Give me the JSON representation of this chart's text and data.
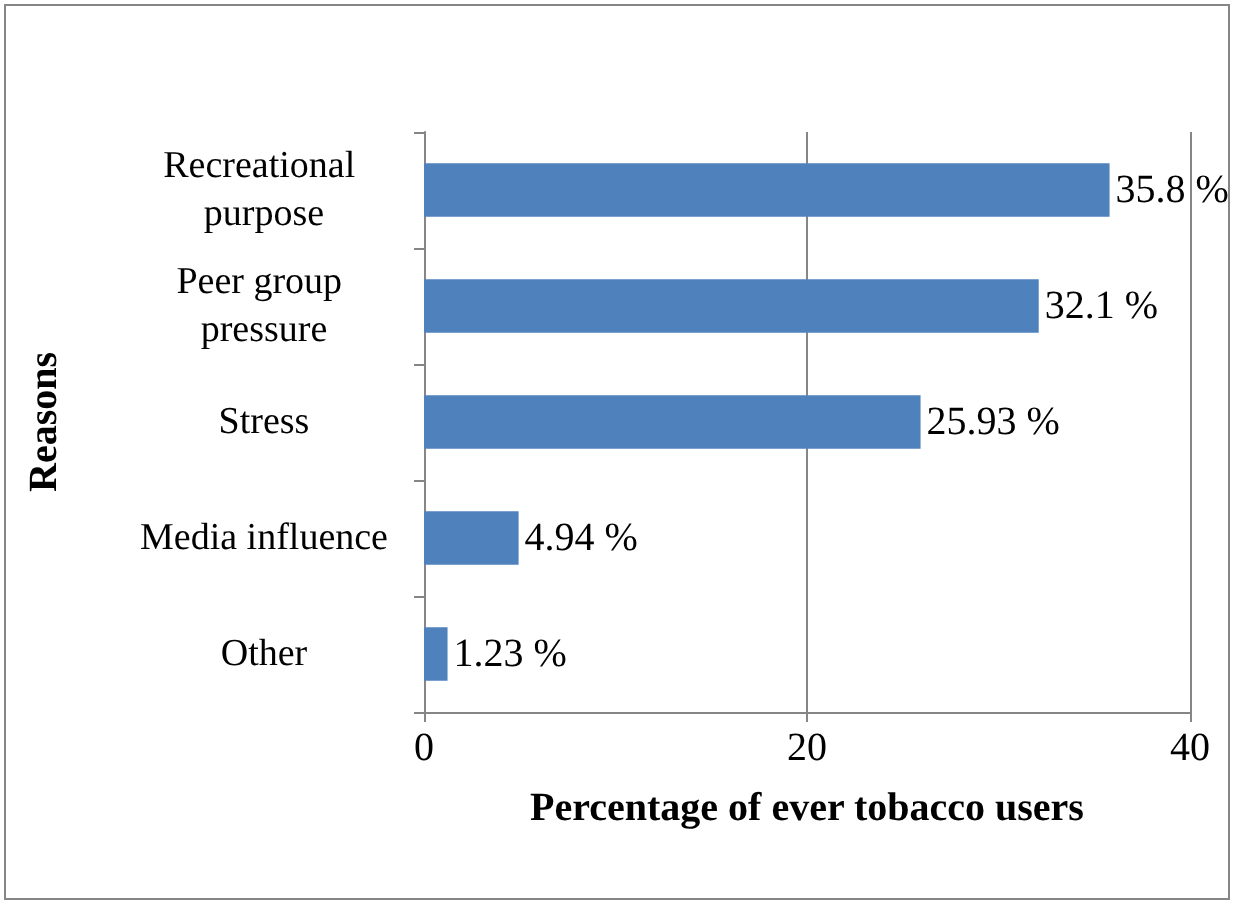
{
  "chart_data": {
    "type": "bar",
    "orientation": "horizontal",
    "xlabel": "Percentage of ever tobacco users",
    "ylabel": "Reasons",
    "categories": [
      "Recreational purpose",
      "Peer group pressure",
      "Stress",
      "Media influence",
      "Other"
    ],
    "values": [
      35.8,
      32.1,
      25.93,
      4.94,
      1.23
    ],
    "value_labels": [
      "35.8 %",
      "32.1 %",
      "25.93 %",
      "4.94 %",
      "1.23 %"
    ],
    "color": "#4f81bd",
    "xlim": [
      0,
      40
    ],
    "xticks": [
      0,
      20,
      40
    ],
    "grid": "x"
  }
}
